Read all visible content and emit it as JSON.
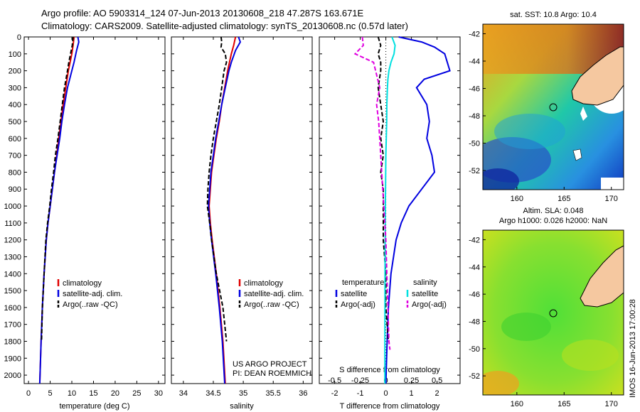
{
  "header": {
    "line1": "Argo profile: AO 5903314_124 07-Jun-2013 20130608_218 47.287S 163.671E",
    "line2": "Climatology: CARS2009. Satellite-adjusted climatology: synTS_20130608.nc (0.57d later)"
  },
  "depth_ticks": [
    "0",
    "100",
    "200",
    "300",
    "400",
    "500",
    "600",
    "700",
    "800",
    "900",
    "1000",
    "1100",
    "1200",
    "1300",
    "1400",
    "1500",
    "1600",
    "1700",
    "1800",
    "1900",
    "2000"
  ],
  "colors": {
    "climatology": "#e00000",
    "satellite": "#0000e0",
    "argo": "#000000",
    "sal_satellite": "#00e0e0",
    "sal_argo": "#e000e0",
    "land": "#f5c8a0"
  },
  "chart_data": [
    {
      "type": "line",
      "xlabel": "temperature (deg C)",
      "xlim": [
        -1,
        31.5
      ],
      "x_ticks": [
        "0",
        "5",
        "10",
        "15",
        "20",
        "25",
        "30"
      ],
      "ylim": [
        2050,
        0
      ],
      "legend": [
        "climatology",
        "satellite-adj. clim.",
        "Argo(..raw -QC)"
      ],
      "series": [
        {
          "name": "climatology",
          "depth": [
            0,
            50,
            100,
            150,
            200,
            300,
            400,
            500,
            600,
            700,
            800,
            900,
            1000,
            1100,
            1200,
            1400,
            1600,
            1800,
            2050
          ],
          "values": [
            10.5,
            10.3,
            10.0,
            9.6,
            9.2,
            8.6,
            8.0,
            7.5,
            7.0,
            6.5,
            6.0,
            5.5,
            5.0,
            4.5,
            4.1,
            3.6,
            3.2,
            2.9,
            2.6
          ]
        },
        {
          "name": "satellite-adj. clim.",
          "depth": [
            0,
            30,
            80,
            150,
            200,
            300,
            400,
            500,
            600,
            700,
            800,
            900,
            1000,
            1100,
            1200,
            1400,
            1600,
            1800,
            2050
          ],
          "values": [
            11.4,
            11.6,
            11.1,
            10.5,
            10.0,
            9.0,
            8.3,
            7.7,
            7.2,
            6.6,
            6.0,
            5.5,
            5.0,
            4.5,
            4.1,
            3.6,
            3.2,
            2.9,
            2.6
          ]
        },
        {
          "name": "Argo(..raw -QC)",
          "depth": [
            0,
            50,
            100,
            150,
            200,
            300,
            400,
            500,
            600,
            700,
            800,
            900,
            1000,
            1100,
            1200,
            1400,
            1600,
            1800
          ],
          "values": [
            10.3,
            10.1,
            9.7,
            9.3,
            9.0,
            8.3,
            7.8,
            7.3,
            6.8,
            6.2,
            5.8,
            5.3,
            4.9,
            4.4,
            4.0,
            3.6,
            3.2,
            3.0
          ]
        }
      ]
    },
    {
      "type": "line",
      "xlabel": "salinity",
      "xlim": [
        33.8,
        36.15
      ],
      "x_ticks": [
        "34",
        "34.5",
        "35",
        "35.5",
        "36"
      ],
      "ylim": [
        2050,
        0
      ],
      "legend": [
        "climatology",
        "satellite-adj. clim.",
        "Argo(..raw -QC)"
      ],
      "annotation": [
        "US ARGO PROJECT",
        "PI: DEAN ROEMMICH"
      ],
      "series": [
        {
          "name": "climatology",
          "depth": [
            0,
            50,
            100,
            150,
            200,
            300,
            400,
            500,
            600,
            700,
            800,
            900,
            1000,
            1100,
            1200,
            1400,
            1600,
            1800,
            2050
          ],
          "values": [
            34.87,
            34.84,
            34.8,
            34.77,
            34.74,
            34.69,
            34.64,
            34.6,
            34.55,
            34.51,
            34.47,
            34.45,
            34.43,
            34.45,
            34.48,
            34.55,
            34.61,
            34.66,
            34.7
          ]
        },
        {
          "name": "satellite-adj. clim.",
          "depth": [
            0,
            30,
            80,
            150,
            200,
            300,
            400,
            500,
            600,
            700,
            800,
            900,
            1000,
            1100,
            1200,
            1400,
            1600,
            1800,
            2050
          ],
          "values": [
            34.92,
            34.95,
            34.87,
            34.8,
            34.76,
            34.7,
            34.64,
            34.59,
            34.54,
            34.5,
            34.46,
            34.44,
            34.42,
            34.44,
            34.47,
            34.54,
            34.6,
            34.65,
            34.69
          ]
        },
        {
          "name": "Argo(..raw -QC)",
          "depth": [
            0,
            30,
            60,
            100,
            150,
            200,
            300,
            400,
            500,
            600,
            700,
            800,
            900,
            1000,
            1100,
            1200,
            1400,
            1600,
            1800
          ],
          "values": [
            34.63,
            34.64,
            34.63,
            34.7,
            34.72,
            34.68,
            34.64,
            34.6,
            34.55,
            34.5,
            34.46,
            34.43,
            34.41,
            34.4,
            34.44,
            34.47,
            34.55,
            34.66,
            34.72
          ]
        }
      ]
    },
    {
      "type": "line",
      "xlabel": "T difference from climatology",
      "xlabel_top": "S difference from climatology",
      "xlim": [
        -2.6,
        2.9
      ],
      "x_ticks": [
        "-2",
        "-1",
        "0",
        "1",
        "2"
      ],
      "x_ticks_top": [
        "-0.5",
        "-0.25",
        "0",
        "0.25",
        "0.5"
      ],
      "ylim": [
        2050,
        0
      ],
      "legend_titles": [
        "temperature",
        "salinity"
      ],
      "legend": [
        "satellite",
        "Argo(-adj)",
        "satellite",
        "Argo(-adj)"
      ],
      "series": [
        {
          "name": "satellite",
          "depth": [
            0,
            30,
            60,
            100,
            150,
            200,
            250,
            300,
            400,
            500,
            600,
            700,
            800,
            900,
            1000,
            1100,
            1200,
            1400,
            1600,
            1800,
            2050
          ],
          "values": [
            0.5,
            1.4,
            1.9,
            2.3,
            2.4,
            2.5,
            1.5,
            1.2,
            1.6,
            1.7,
            1.6,
            1.8,
            1.9,
            1.4,
            0.9,
            0.6,
            0.4,
            0.2,
            0.1,
            0.05,
            0.0
          ]
        },
        {
          "name": "Argo(-adj)",
          "depth": [
            0,
            50,
            100,
            150,
            200,
            300,
            400,
            500,
            600,
            700,
            800,
            900,
            1000,
            1100,
            1200,
            1400,
            1600,
            1800
          ],
          "values": [
            -0.3,
            -0.2,
            -0.3,
            -0.2,
            -0.2,
            -0.3,
            -0.2,
            -0.1,
            -0.2,
            -0.1,
            -0.2,
            -0.1,
            -0.1,
            -0.1,
            -0.1,
            0.0,
            0.0,
            0.1
          ]
        },
        {
          "name": "satellite",
          "depth": [
            0,
            50,
            100,
            150,
            200,
            250,
            300,
            400,
            500,
            700,
            1000,
            1400,
            1800,
            2050
          ],
          "values": [
            0.06,
            0.09,
            0.08,
            0.05,
            0.03,
            0.02,
            0.015,
            0.01,
            0.008,
            0.0,
            -0.005,
            -0.008,
            -0.01,
            -0.01
          ]
        },
        {
          "name": "Argo(-adj)",
          "depth": [
            0,
            50,
            100,
            150,
            200,
            300,
            400,
            500,
            600,
            700,
            800,
            1000,
            1200,
            1400,
            1600,
            1800,
            1850
          ],
          "values": [
            -0.23,
            -0.22,
            -0.3,
            -0.12,
            -0.1,
            -0.06,
            -0.09,
            -0.07,
            -0.06,
            -0.05,
            -0.04,
            -0.02,
            0.0,
            0.01,
            0.02,
            0.03,
            0.04
          ]
        }
      ]
    }
  ],
  "maps": {
    "sst": {
      "title": "sat. SST: 10.8 Argo: 10.4",
      "lat_ticks": [
        "-42",
        "-44",
        "-46",
        "-48",
        "-50",
        "-52"
      ],
      "lon_ticks": [
        "160",
        "165",
        "170"
      ],
      "lat_range": [
        -53.4,
        -41.3
      ],
      "lon_range": [
        156.4,
        171.3
      ],
      "float_position": [
        163.671,
        -47.287
      ]
    },
    "sla": {
      "title_line1": "Altim. SLA: 0.048",
      "title_line2": "Argo h1000: 0.026 h2000: NaN",
      "lat_ticks": [
        "-42",
        "-44",
        "-46",
        "-48",
        "-50",
        "-52"
      ],
      "lon_ticks": [
        "160",
        "165",
        "170"
      ],
      "lat_range": [
        -53.4,
        -41.3
      ],
      "lon_range": [
        156.4,
        171.3
      ],
      "float_position": [
        163.671,
        -47.287
      ]
    }
  },
  "stamp": "IMOS 16-Jun-2013 17:00:28"
}
